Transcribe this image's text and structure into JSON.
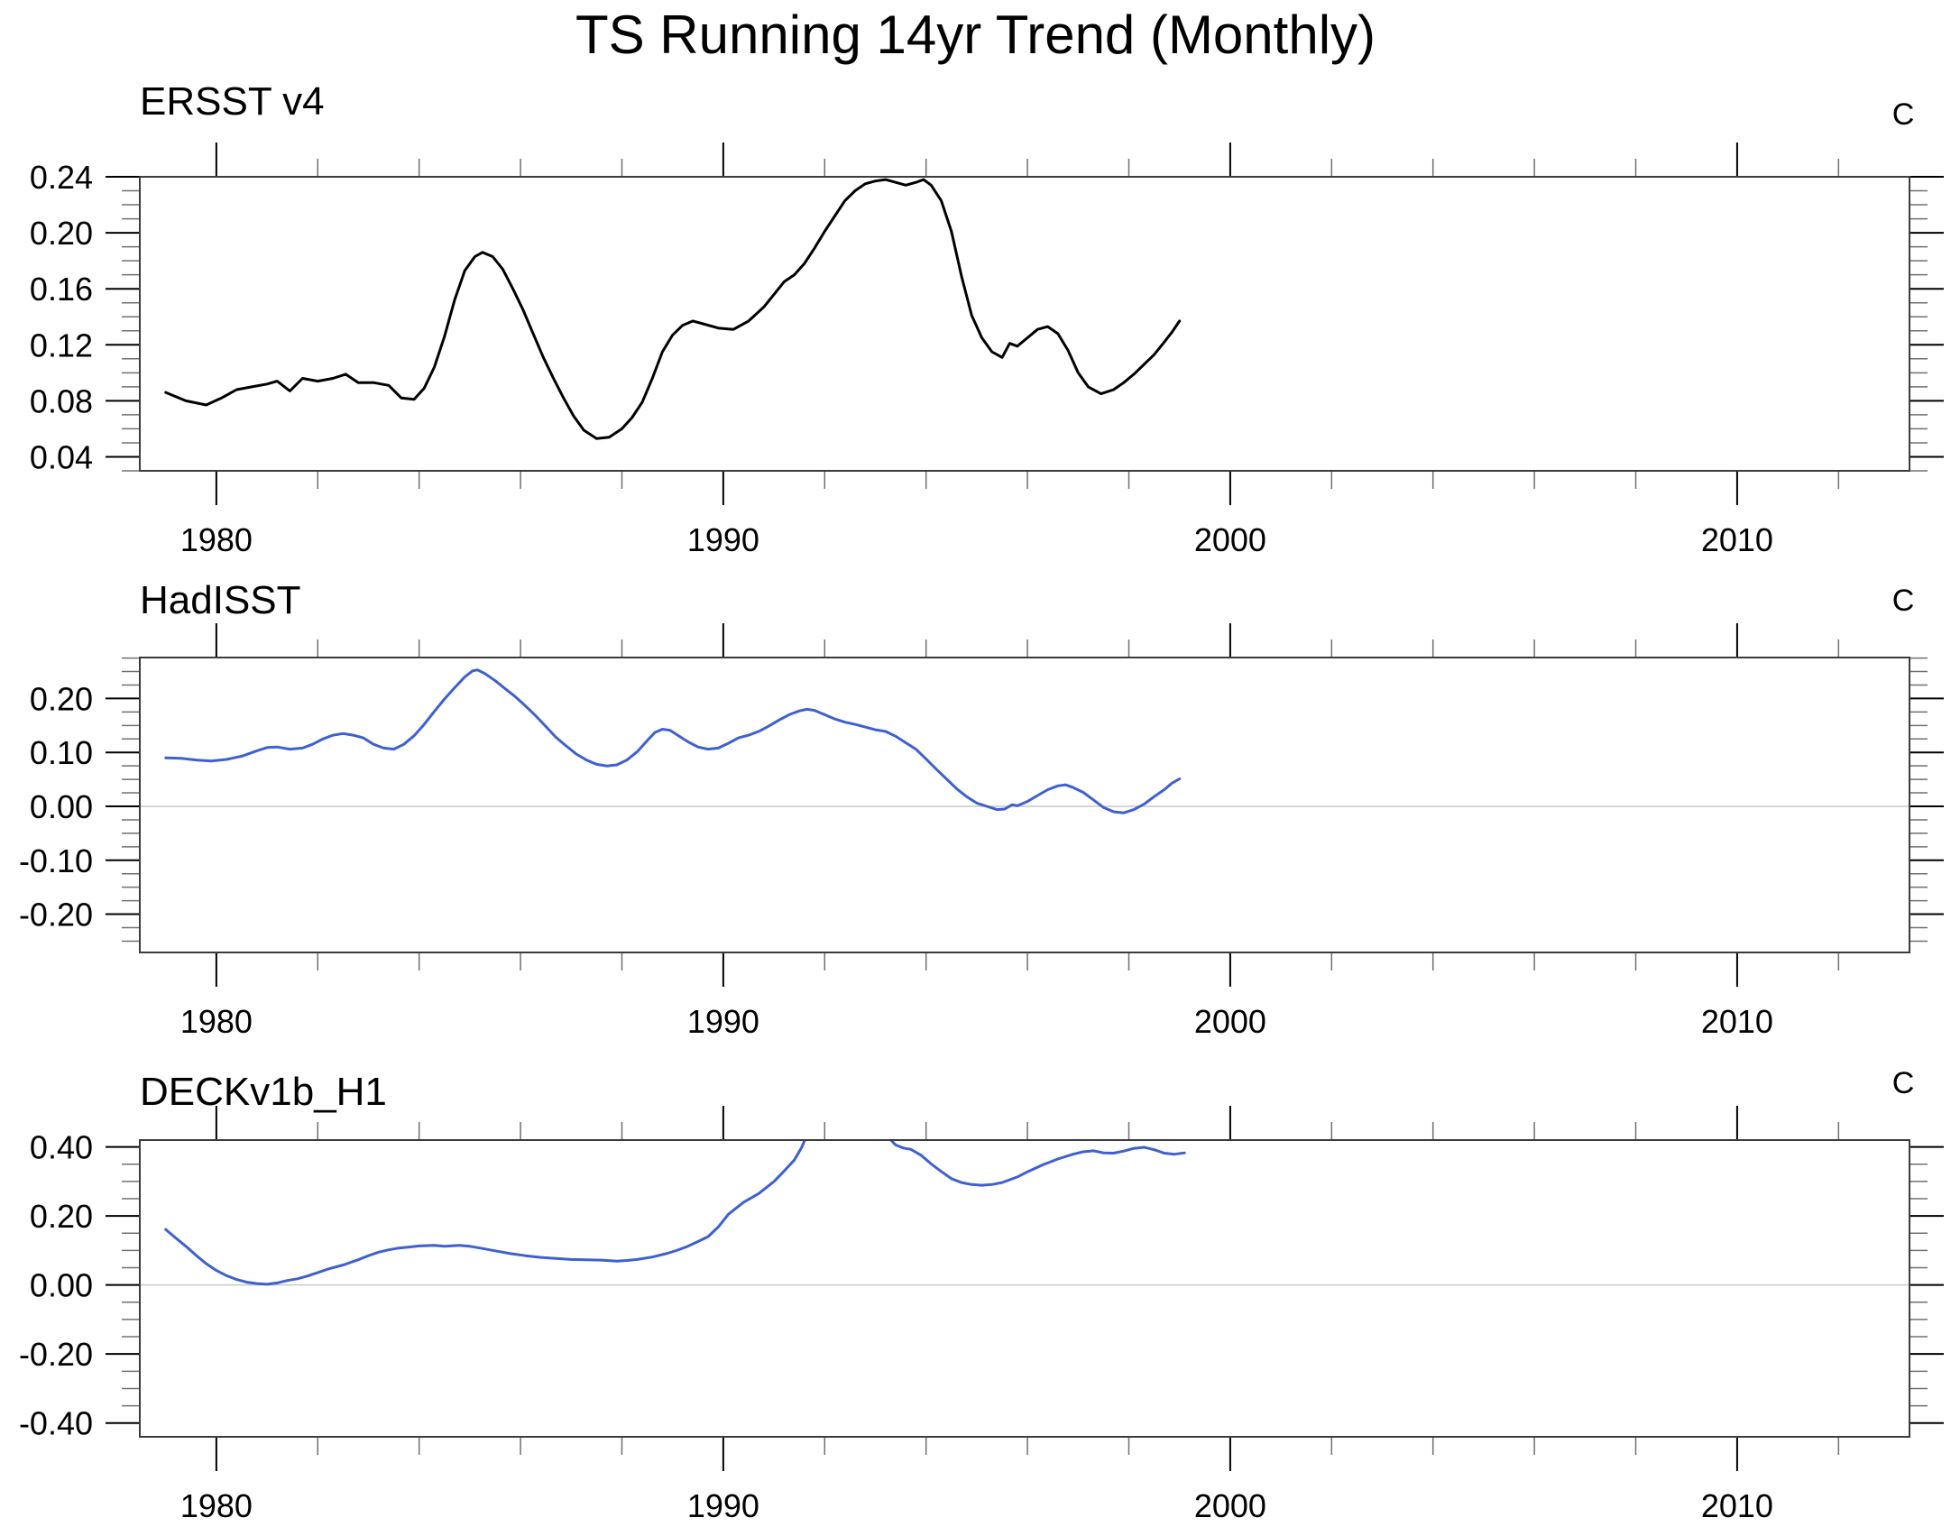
{
  "title": "TS Running 14yr Trend (Monthly)",
  "colors": {
    "background": "#ffffff",
    "black_line": "#000000",
    "blue_line": "#3e60d0",
    "zero_line": "#c9c9c9",
    "plot_border": "#3c3c3c",
    "major_tick": "#000000",
    "minor_tick": "#707070"
  },
  "x_axis": {
    "range": [
      1978.49,
      2013.4
    ],
    "major_ticks": [
      1980,
      1990,
      2000,
      2010
    ],
    "tick_labels": [
      "1980",
      "1990",
      "2000",
      "2010"
    ],
    "minor_step": 2
  },
  "chart_data": [
    {
      "type": "line",
      "title": "ERSST v4",
      "unit": "C",
      "ylim": [
        0.03,
        0.24
      ],
      "yticks": [
        0.24,
        0.2,
        0.16,
        0.12,
        0.08,
        0.04
      ],
      "minor_step": 0.01,
      "zero_line": false,
      "line_color": "#000000",
      "grid": false,
      "legend": "none",
      "segments": [
        [
          [
            1979.0,
            0.086
          ],
          [
            1979.4,
            0.08
          ],
          [
            1979.8,
            0.077
          ],
          [
            1980.1,
            0.082
          ],
          [
            1980.4,
            0.088
          ],
          [
            1980.7,
            0.09
          ],
          [
            1981.0,
            0.092
          ],
          [
            1981.2,
            0.094
          ],
          [
            1981.45,
            0.087
          ],
          [
            1981.7,
            0.096
          ],
          [
            1982.0,
            0.094
          ],
          [
            1982.3,
            0.096
          ],
          [
            1982.55,
            0.099
          ],
          [
            1982.8,
            0.093
          ],
          [
            1983.1,
            0.093
          ],
          [
            1983.4,
            0.091
          ],
          [
            1983.65,
            0.082
          ],
          [
            1983.9,
            0.081
          ],
          [
            1984.1,
            0.089
          ],
          [
            1984.3,
            0.104
          ],
          [
            1984.5,
            0.126
          ],
          [
            1984.7,
            0.152
          ],
          [
            1984.9,
            0.173
          ],
          [
            1985.1,
            0.183
          ],
          [
            1985.25,
            0.186
          ],
          [
            1985.45,
            0.183
          ],
          [
            1985.65,
            0.174
          ],
          [
            1985.85,
            0.16
          ],
          [
            1986.05,
            0.145
          ],
          [
            1986.25,
            0.128
          ],
          [
            1986.45,
            0.111
          ],
          [
            1986.65,
            0.096
          ],
          [
            1986.85,
            0.082
          ],
          [
            1987.05,
            0.069
          ],
          [
            1987.25,
            0.059
          ],
          [
            1987.5,
            0.053
          ],
          [
            1987.75,
            0.054
          ],
          [
            1988.0,
            0.06
          ],
          [
            1988.2,
            0.068
          ],
          [
            1988.4,
            0.079
          ],
          [
            1988.6,
            0.096
          ],
          [
            1988.8,
            0.115
          ],
          [
            1989.0,
            0.127
          ],
          [
            1989.2,
            0.134
          ],
          [
            1989.4,
            0.137
          ],
          [
            1989.6,
            0.135
          ],
          [
            1989.9,
            0.132
          ],
          [
            1990.2,
            0.131
          ],
          [
            1990.5,
            0.137
          ],
          [
            1990.8,
            0.147
          ],
          [
            1991.0,
            0.156
          ],
          [
            1991.2,
            0.165
          ],
          [
            1991.4,
            0.17
          ],
          [
            1991.6,
            0.178
          ],
          [
            1991.8,
            0.189
          ],
          [
            1992.0,
            0.201
          ],
          [
            1992.2,
            0.212
          ],
          [
            1992.4,
            0.223
          ],
          [
            1992.6,
            0.23
          ],
          [
            1992.8,
            0.235
          ],
          [
            1993.0,
            0.237
          ],
          [
            1993.2,
            0.238
          ],
          [
            1993.4,
            0.236
          ],
          [
            1993.6,
            0.234
          ],
          [
            1993.8,
            0.236
          ],
          [
            1993.95,
            0.238
          ],
          [
            1994.1,
            0.234
          ],
          [
            1994.3,
            0.223
          ],
          [
            1994.5,
            0.201
          ],
          [
            1994.7,
            0.169
          ],
          [
            1994.9,
            0.141
          ],
          [
            1995.1,
            0.125
          ],
          [
            1995.3,
            0.115
          ],
          [
            1995.5,
            0.111
          ],
          [
            1995.65,
            0.121
          ],
          [
            1995.8,
            0.119
          ],
          [
            1996.0,
            0.125
          ],
          [
            1996.2,
            0.131
          ],
          [
            1996.4,
            0.133
          ],
          [
            1996.6,
            0.128
          ],
          [
            1996.8,
            0.116
          ],
          [
            1997.0,
            0.1
          ],
          [
            1997.2,
            0.09
          ],
          [
            1997.45,
            0.085
          ],
          [
            1997.7,
            0.088
          ],
          [
            1997.9,
            0.093
          ],
          [
            1998.1,
            0.099
          ],
          [
            1998.3,
            0.106
          ],
          [
            1998.5,
            0.113
          ],
          [
            1998.7,
            0.122
          ],
          [
            1998.85,
            0.129
          ],
          [
            1999.0,
            0.137
          ]
        ]
      ]
    },
    {
      "type": "line",
      "title": "HadISST",
      "unit": "C",
      "ylim": [
        -0.271,
        0.276
      ],
      "yticks": [
        0.2,
        0.1,
        0.0,
        -0.1,
        -0.2
      ],
      "minor_step": 0.025,
      "zero_line": true,
      "line_color": "#3e60d0",
      "grid": false,
      "legend": "none",
      "segments": [
        [
          [
            1979.0,
            0.09
          ],
          [
            1979.3,
            0.089
          ],
          [
            1979.6,
            0.086
          ],
          [
            1979.9,
            0.084
          ],
          [
            1980.2,
            0.087
          ],
          [
            1980.5,
            0.093
          ],
          [
            1980.8,
            0.103
          ],
          [
            1981.0,
            0.109
          ],
          [
            1981.2,
            0.11
          ],
          [
            1981.45,
            0.106
          ],
          [
            1981.7,
            0.108
          ],
          [
            1981.9,
            0.115
          ],
          [
            1982.1,
            0.125
          ],
          [
            1982.3,
            0.132
          ],
          [
            1982.5,
            0.135
          ],
          [
            1982.7,
            0.132
          ],
          [
            1982.9,
            0.127
          ],
          [
            1983.1,
            0.115
          ],
          [
            1983.3,
            0.108
          ],
          [
            1983.5,
            0.106
          ],
          [
            1983.7,
            0.115
          ],
          [
            1983.9,
            0.131
          ],
          [
            1984.1,
            0.152
          ],
          [
            1984.3,
            0.176
          ],
          [
            1984.5,
            0.199
          ],
          [
            1984.7,
            0.22
          ],
          [
            1984.9,
            0.24
          ],
          [
            1985.05,
            0.251
          ],
          [
            1985.15,
            0.253
          ],
          [
            1985.3,
            0.246
          ],
          [
            1985.5,
            0.233
          ],
          [
            1985.7,
            0.218
          ],
          [
            1985.9,
            0.203
          ],
          [
            1986.1,
            0.186
          ],
          [
            1986.3,
            0.168
          ],
          [
            1986.5,
            0.148
          ],
          [
            1986.7,
            0.128
          ],
          [
            1986.9,
            0.112
          ],
          [
            1987.1,
            0.097
          ],
          [
            1987.3,
            0.086
          ],
          [
            1987.5,
            0.078
          ],
          [
            1987.7,
            0.075
          ],
          [
            1987.9,
            0.077
          ],
          [
            1988.1,
            0.086
          ],
          [
            1988.3,
            0.101
          ],
          [
            1988.5,
            0.122
          ],
          [
            1988.65,
            0.137
          ],
          [
            1988.8,
            0.143
          ],
          [
            1988.95,
            0.141
          ],
          [
            1989.1,
            0.132
          ],
          [
            1989.3,
            0.12
          ],
          [
            1989.5,
            0.11
          ],
          [
            1989.7,
            0.106
          ],
          [
            1989.9,
            0.108
          ],
          [
            1990.1,
            0.117
          ],
          [
            1990.3,
            0.127
          ],
          [
            1990.5,
            0.132
          ],
          [
            1990.7,
            0.139
          ],
          [
            1990.9,
            0.149
          ],
          [
            1991.1,
            0.16
          ],
          [
            1991.3,
            0.17
          ],
          [
            1991.5,
            0.177
          ],
          [
            1991.65,
            0.18
          ],
          [
            1991.8,
            0.178
          ],
          [
            1992.0,
            0.17
          ],
          [
            1992.2,
            0.162
          ],
          [
            1992.4,
            0.156
          ],
          [
            1992.6,
            0.152
          ],
          [
            1992.8,
            0.147
          ],
          [
            1993.0,
            0.142
          ],
          [
            1993.2,
            0.139
          ],
          [
            1993.4,
            0.13
          ],
          [
            1993.6,
            0.118
          ],
          [
            1993.8,
            0.106
          ],
          [
            1994.0,
            0.088
          ],
          [
            1994.2,
            0.069
          ],
          [
            1994.4,
            0.051
          ],
          [
            1994.6,
            0.033
          ],
          [
            1994.8,
            0.018
          ],
          [
            1995.0,
            0.006
          ],
          [
            1995.2,
            0.0
          ],
          [
            1995.4,
            -0.006
          ],
          [
            1995.55,
            -0.005
          ],
          [
            1995.7,
            0.003
          ],
          [
            1995.8,
            0.001
          ],
          [
            1996.0,
            0.009
          ],
          [
            1996.2,
            0.02
          ],
          [
            1996.4,
            0.031
          ],
          [
            1996.6,
            0.038
          ],
          [
            1996.75,
            0.04
          ],
          [
            1996.9,
            0.035
          ],
          [
            1997.1,
            0.026
          ],
          [
            1997.3,
            0.012
          ],
          [
            1997.5,
            -0.002
          ],
          [
            1997.7,
            -0.01
          ],
          [
            1997.9,
            -0.012
          ],
          [
            1998.1,
            -0.006
          ],
          [
            1998.3,
            0.004
          ],
          [
            1998.5,
            0.018
          ],
          [
            1998.7,
            0.031
          ],
          [
            1998.85,
            0.043
          ],
          [
            1999.0,
            0.051
          ]
        ]
      ]
    },
    {
      "type": "line",
      "title": "DECKv1b_H1",
      "unit": "C",
      "ylim": [
        -0.44,
        0.42
      ],
      "yticks": [
        0.4,
        0.2,
        0.0,
        -0.2,
        -0.4
      ],
      "minor_step": 0.05,
      "zero_line": true,
      "line_color": "#3e60d0",
      "grid": false,
      "legend": "none",
      "clipped_gap": [
        1991.6,
        1993.3
      ],
      "segments": [
        [
          [
            1979.0,
            0.161
          ],
          [
            1979.2,
            0.136
          ],
          [
            1979.4,
            0.112
          ],
          [
            1979.6,
            0.086
          ],
          [
            1979.8,
            0.062
          ],
          [
            1980.0,
            0.042
          ],
          [
            1980.2,
            0.027
          ],
          [
            1980.4,
            0.016
          ],
          [
            1980.6,
            0.008
          ],
          [
            1980.8,
            0.004
          ],
          [
            1981.0,
            0.002
          ],
          [
            1981.2,
            0.006
          ],
          [
            1981.4,
            0.013
          ],
          [
            1981.6,
            0.018
          ],
          [
            1981.8,
            0.026
          ],
          [
            1982.0,
            0.036
          ],
          [
            1982.2,
            0.046
          ],
          [
            1982.5,
            0.058
          ],
          [
            1982.8,
            0.073
          ],
          [
            1983.0,
            0.085
          ],
          [
            1983.2,
            0.095
          ],
          [
            1983.4,
            0.102
          ],
          [
            1983.6,
            0.107
          ],
          [
            1983.8,
            0.11
          ],
          [
            1984.0,
            0.113
          ],
          [
            1984.3,
            0.115
          ],
          [
            1984.5,
            0.112
          ],
          [
            1984.8,
            0.115
          ],
          [
            1985.0,
            0.112
          ],
          [
            1985.2,
            0.107
          ],
          [
            1985.5,
            0.099
          ],
          [
            1985.8,
            0.091
          ],
          [
            1986.1,
            0.085
          ],
          [
            1986.4,
            0.08
          ],
          [
            1986.7,
            0.077
          ],
          [
            1987.0,
            0.074
          ],
          [
            1987.3,
            0.073
          ],
          [
            1987.6,
            0.072
          ],
          [
            1987.9,
            0.069
          ],
          [
            1988.1,
            0.071
          ],
          [
            1988.3,
            0.074
          ],
          [
            1988.6,
            0.081
          ],
          [
            1988.9,
            0.092
          ],
          [
            1989.1,
            0.101
          ],
          [
            1989.3,
            0.112
          ],
          [
            1989.5,
            0.126
          ],
          [
            1989.7,
            0.14
          ],
          [
            1989.9,
            0.168
          ],
          [
            1990.1,
            0.205
          ],
          [
            1990.4,
            0.24
          ],
          [
            1990.7,
            0.265
          ],
          [
            1991.0,
            0.3
          ],
          [
            1991.2,
            0.33
          ],
          [
            1991.4,
            0.362
          ],
          [
            1991.55,
            0.4
          ],
          [
            1991.63,
            0.428
          ]
        ],
        [
          [
            1993.28,
            0.424
          ],
          [
            1993.4,
            0.406
          ],
          [
            1993.55,
            0.397
          ],
          [
            1993.7,
            0.393
          ],
          [
            1993.9,
            0.376
          ],
          [
            1994.1,
            0.351
          ],
          [
            1994.3,
            0.329
          ],
          [
            1994.5,
            0.308
          ],
          [
            1994.7,
            0.297
          ],
          [
            1994.9,
            0.291
          ],
          [
            1995.1,
            0.289
          ],
          [
            1995.3,
            0.291
          ],
          [
            1995.5,
            0.297
          ],
          [
            1995.8,
            0.313
          ],
          [
            1996.0,
            0.328
          ],
          [
            1996.3,
            0.348
          ],
          [
            1996.6,
            0.365
          ],
          [
            1996.9,
            0.379
          ],
          [
            1997.1,
            0.386
          ],
          [
            1997.3,
            0.389
          ],
          [
            1997.5,
            0.383
          ],
          [
            1997.7,
            0.382
          ],
          [
            1997.9,
            0.388
          ],
          [
            1998.1,
            0.396
          ],
          [
            1998.3,
            0.399
          ],
          [
            1998.5,
            0.392
          ],
          [
            1998.7,
            0.382
          ],
          [
            1998.9,
            0.379
          ],
          [
            1999.1,
            0.383
          ]
        ]
      ]
    }
  ]
}
